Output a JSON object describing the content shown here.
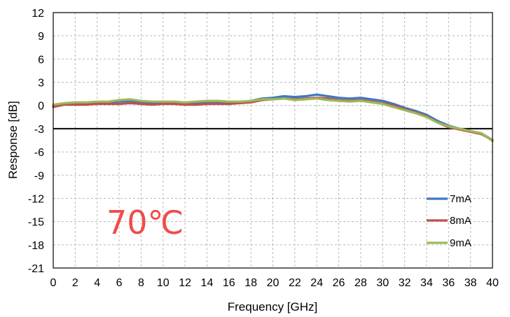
{
  "chart_data": {
    "type": "line",
    "title": "",
    "xlabel": "Frequency [GHz]",
    "ylabel": "Response [dB]",
    "xlim": [
      0,
      40
    ],
    "ylim": [
      -21,
      12
    ],
    "xticks": [
      "0",
      "2",
      "4",
      "6",
      "8",
      "10",
      "12",
      "14",
      "16",
      "18",
      "20",
      "22",
      "24",
      "26",
      "28",
      "30",
      "32",
      "34",
      "36",
      "38",
      "40"
    ],
    "yticks": [
      "12",
      "9",
      "6",
      "3",
      "0",
      "-3",
      "-6",
      "-9",
      "-12",
      "-15",
      "-18",
      "-21"
    ],
    "grid": true,
    "legend_position": "bottom-right",
    "annotation": "70℃",
    "annotation_color": "#f04b4b",
    "reference_line": {
      "y": -3,
      "color": "#000000"
    },
    "series": [
      {
        "name": "7mA",
        "color": "#3f78c2",
        "x": [
          0,
          1,
          2,
          3,
          4,
          5,
          6,
          7,
          8,
          9,
          10,
          11,
          12,
          13,
          14,
          15,
          16,
          17,
          18,
          19,
          20,
          21,
          22,
          23,
          24,
          25,
          26,
          27,
          28,
          29,
          30,
          31,
          32,
          33,
          34,
          35,
          36,
          37,
          38,
          39,
          40
        ],
        "y": [
          0,
          0.2,
          0.3,
          0.3,
          0.3,
          0.4,
          0.5,
          0.6,
          0.4,
          0.3,
          0.4,
          0.4,
          0.3,
          0.3,
          0.4,
          0.4,
          0.3,
          0.4,
          0.6,
          0.9,
          1.0,
          1.2,
          1.1,
          1.2,
          1.4,
          1.2,
          1.0,
          0.9,
          1.0,
          0.8,
          0.6,
          0.2,
          -0.3,
          -0.7,
          -1.2,
          -2.0,
          -2.6,
          -3.0,
          -3.3,
          -3.6,
          -4.5
        ]
      },
      {
        "name": "8mA",
        "color": "#c0504d",
        "x": [
          0,
          1,
          2,
          3,
          4,
          5,
          6,
          7,
          8,
          9,
          10,
          11,
          12,
          13,
          14,
          15,
          16,
          17,
          18,
          19,
          20,
          21,
          22,
          23,
          24,
          25,
          26,
          27,
          28,
          29,
          30,
          31,
          32,
          33,
          34,
          35,
          36,
          37,
          38,
          39,
          40
        ],
        "y": [
          -0.2,
          0.1,
          0.1,
          0.1,
          0.2,
          0.2,
          0.2,
          0.3,
          0.2,
          0.1,
          0.2,
          0.2,
          0.1,
          0.1,
          0.2,
          0.2,
          0.2,
          0.3,
          0.4,
          0.7,
          0.8,
          0.9,
          0.8,
          0.9,
          1.0,
          0.9,
          0.7,
          0.6,
          0.7,
          0.5,
          0.3,
          0.0,
          -0.5,
          -0.9,
          -1.4,
          -2.2,
          -2.8,
          -3.1,
          -3.4,
          -3.7,
          -4.5
        ]
      },
      {
        "name": "9mA",
        "color": "#9bbb59",
        "x": [
          0,
          1,
          2,
          3,
          4,
          5,
          6,
          7,
          8,
          9,
          10,
          11,
          12,
          13,
          14,
          15,
          16,
          17,
          18,
          19,
          20,
          21,
          22,
          23,
          24,
          25,
          26,
          27,
          28,
          29,
          30,
          31,
          32,
          33,
          34,
          35,
          36,
          37,
          38,
          39,
          40
        ],
        "y": [
          0.1,
          0.3,
          0.4,
          0.4,
          0.5,
          0.5,
          0.7,
          0.8,
          0.6,
          0.5,
          0.5,
          0.5,
          0.4,
          0.5,
          0.6,
          0.6,
          0.5,
          0.5,
          0.6,
          0.8,
          0.8,
          0.9,
          0.7,
          0.8,
          0.9,
          0.7,
          0.6,
          0.5,
          0.6,
          0.4,
          0.2,
          -0.2,
          -0.6,
          -1.0,
          -1.5,
          -2.2,
          -2.7,
          -3.0,
          -3.3,
          -3.6,
          -4.6
        ]
      }
    ]
  }
}
